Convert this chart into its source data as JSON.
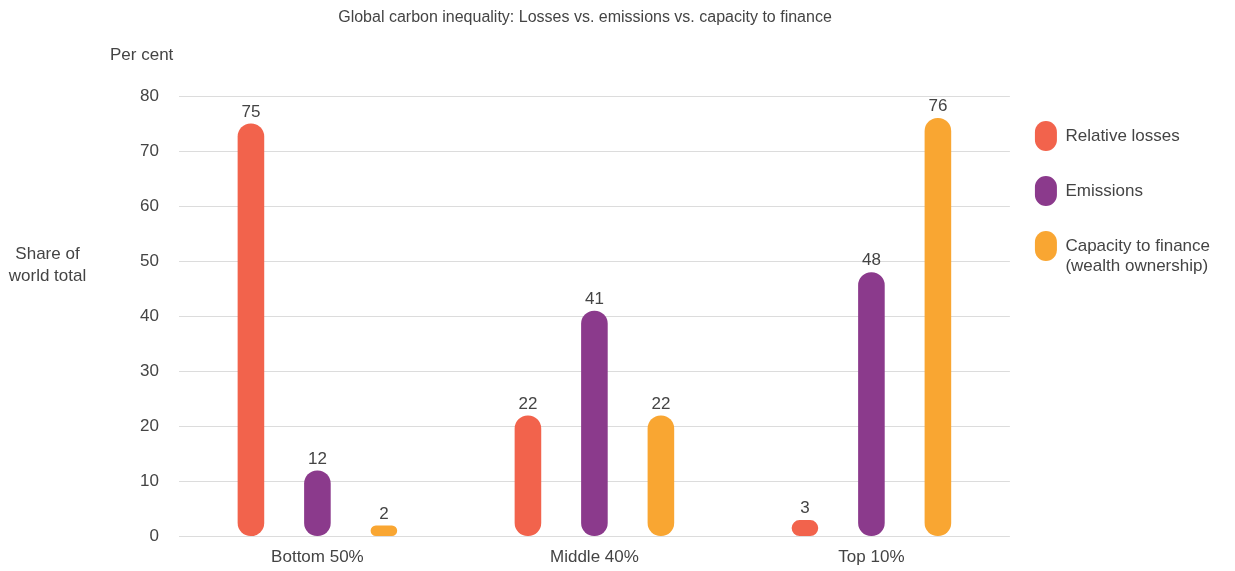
{
  "chart_data": {
    "type": "bar",
    "title": "Global carbon inequality: Losses vs. emissions vs. capacity to finance",
    "ylabel": "Share of world total",
    "annotations": [
      "Per cent"
    ],
    "categories": [
      "Bottom 50%",
      "Middle 40%",
      "Top 10%"
    ],
    "series": [
      {
        "name": "Relative losses",
        "color": "#f2634c",
        "values": [
          75,
          22,
          3
        ]
      },
      {
        "name": "Emissions",
        "color": "#8b3a8c",
        "values": [
          12,
          41,
          48
        ]
      },
      {
        "name": "Capacity to finance (wealth ownership)",
        "color": "#f9a632",
        "values": [
          2,
          22,
          76
        ]
      }
    ],
    "ylim": [
      0,
      80
    ],
    "yticks": [
      0,
      10,
      20,
      30,
      40,
      50,
      60,
      70,
      80
    ],
    "grid": "y",
    "legend": "right",
    "data_labels": true
  }
}
